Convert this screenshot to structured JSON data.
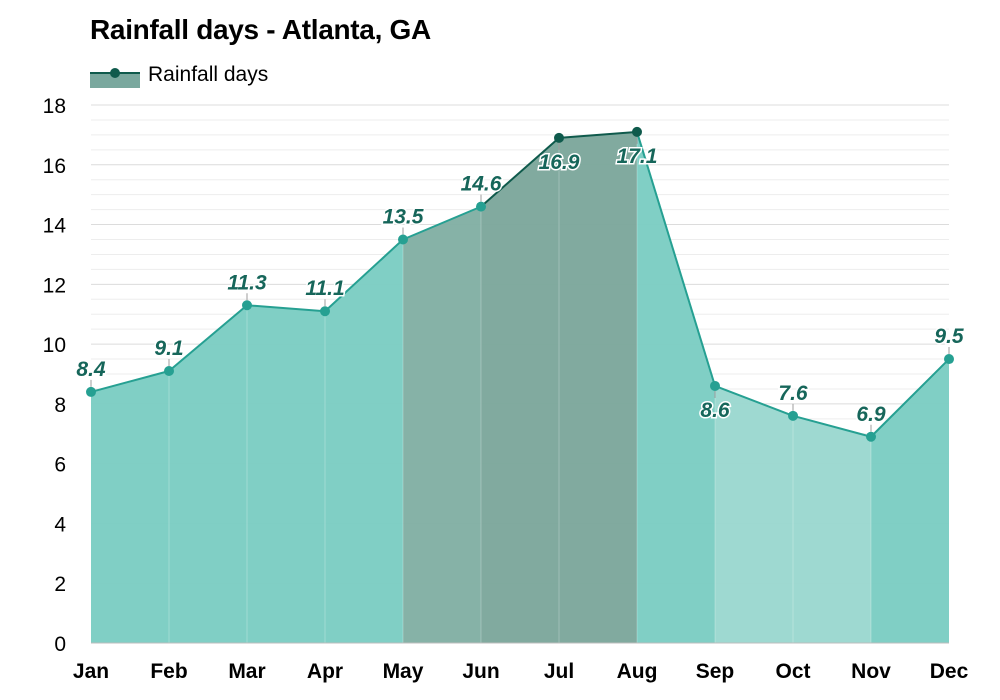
{
  "chart_data": {
    "type": "area",
    "title": "Rainfall days - Atlanta, GA",
    "xlabel": "",
    "ylabel": "",
    "categories": [
      "Jan",
      "Feb",
      "Mar",
      "Apr",
      "May",
      "Jun",
      "Jul",
      "Aug",
      "Sep",
      "Oct",
      "Nov",
      "Dec"
    ],
    "series": [
      {
        "name": "Rainfall days",
        "values": [
          8.4,
          9.1,
          11.3,
          11.1,
          13.5,
          14.6,
          16.9,
          17.1,
          8.6,
          7.6,
          6.9,
          9.5
        ],
        "labels": [
          "8.4",
          "9.1",
          "11.3",
          "11.1",
          "13.5",
          "14.6",
          "16.9",
          "17.1",
          "8.6",
          "7.6",
          "6.9",
          "9.5"
        ]
      }
    ],
    "ylim": [
      0,
      18
    ],
    "yticks": [
      "0",
      "2",
      "4",
      "6",
      "8",
      "10",
      "12",
      "14",
      "16",
      "18"
    ],
    "grid": true,
    "legend_position": "top-left",
    "colors": {
      "line_light": "#26a092",
      "line_dark": "#0f5a4c",
      "label": "#16665a",
      "fill_light": "#7ccdc3",
      "fill_lighter": "#9bd8d0",
      "fill_mid": "#82b0a4",
      "fill_dark": "#7da79c",
      "legend_fill": "#7aa89e"
    }
  }
}
